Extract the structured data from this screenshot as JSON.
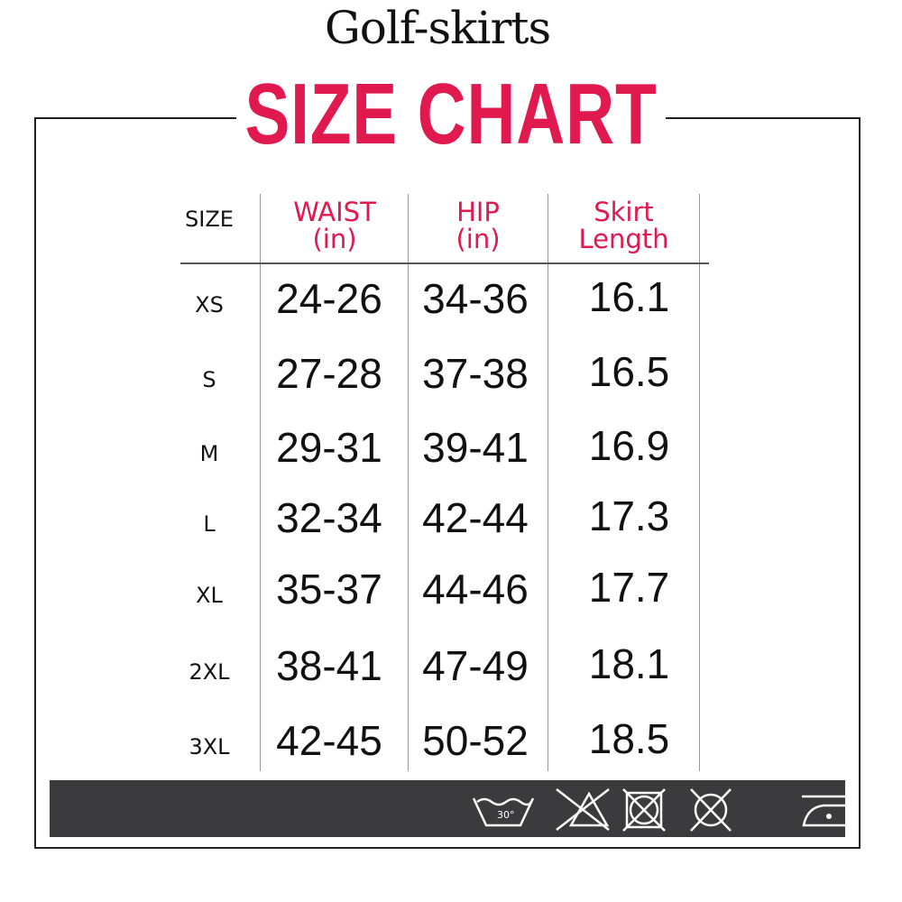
{
  "brand": "Golf-skirts",
  "title": "SIZE CHART",
  "headers": {
    "size": "SIZE",
    "waist": "WAIST",
    "waist_unit": "(in)",
    "hip": "HIP",
    "hip_unit": "(in)",
    "length": "Skirt",
    "length2": "Length"
  },
  "rows": [
    {
      "size": "XS",
      "waist": "24-26",
      "hip": "34-36",
      "length": "16.1"
    },
    {
      "size": "S",
      "waist": "27-28",
      "hip": "37-38",
      "length": "16.5"
    },
    {
      "size": "M",
      "waist": "29-31",
      "hip": "39-41",
      "length": "16.9"
    },
    {
      "size": "L",
      "waist": "32-34",
      "hip": "42-44",
      "length": "17.3"
    },
    {
      "size": "XL",
      "waist": "35-37",
      "hip": "44-46",
      "length": "17.7"
    },
    {
      "size": "2XL",
      "waist": "38-41",
      "hip": "47-49",
      "length": "18.1"
    },
    {
      "size": "3XL",
      "waist": "42-45",
      "hip": "50-52",
      "length": "18.5"
    }
  ],
  "care_icons": [
    "wash-30-icon",
    "no-bleach-icon",
    "no-tumble-dry-icon",
    "no-dry-clean-icon",
    "iron-low-icon"
  ],
  "wash_temp": "30°",
  "colors": {
    "accent": "#e0194f",
    "bar": "#3b3a3c"
  }
}
